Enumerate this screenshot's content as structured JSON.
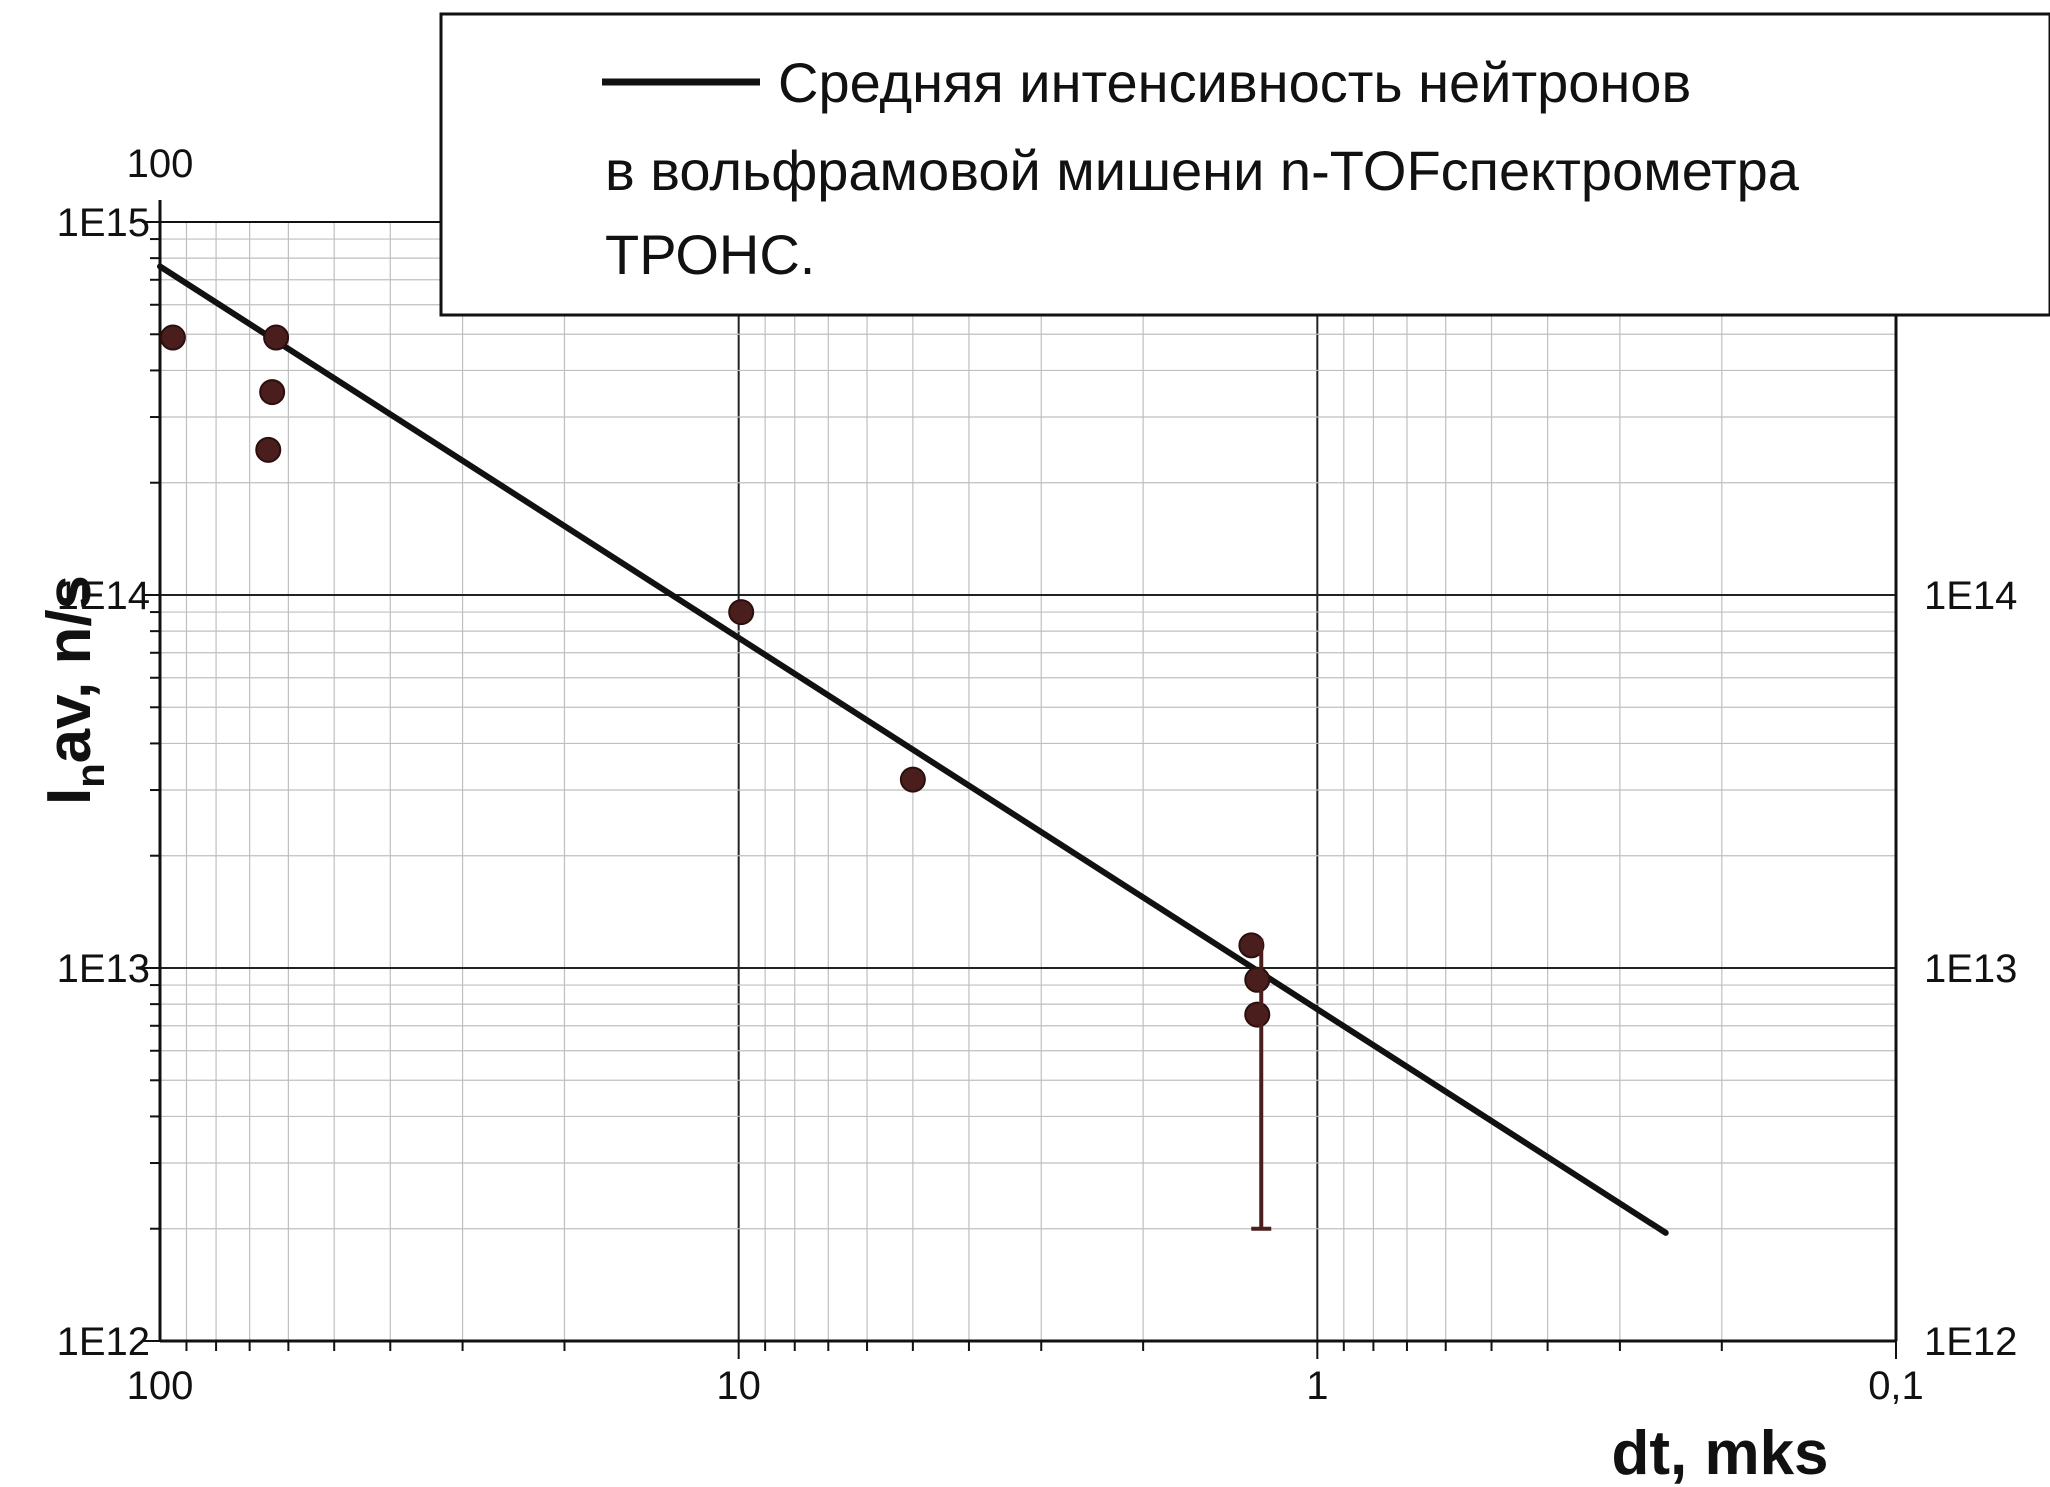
{
  "chart_data": {
    "type": "scatter",
    "title": "",
    "xlabel": "dt, mks",
    "ylabel_main": "I",
    "ylabel_sub": "n",
    "ylabel_rest": "av, n/s",
    "x_scale": "log",
    "x_direction": "reversed",
    "xlim": [
      100,
      0.1
    ],
    "y_scale": "log",
    "ylim": [
      1000000000000.0,
      1000000000000000.0
    ],
    "grid": true,
    "legend_placement": "top-right",
    "legend_lines": [
      "Средняя интенсивность нейтронов",
      "в вольфрамовой мишени n-TOFспектрометра",
      "ТРОНС."
    ],
    "x_tick_labels": [
      {
        "x": 100,
        "label": "100"
      },
      {
        "x": 10,
        "label": "10"
      },
      {
        "x": 1,
        "label": "1"
      },
      {
        "x": 0.1,
        "label": "0,1"
      }
    ],
    "x_top_label": "100",
    "y_tick_labels_left": [
      {
        "y": 1000000000000000.0,
        "label": "1E15"
      },
      {
        "y": 100000000000000.0,
        "label": "1E14"
      },
      {
        "y": 10000000000000.0,
        "label": "1E13"
      },
      {
        "y": 1000000000000.0,
        "label": "1E12"
      }
    ],
    "y_tick_labels_right": [
      {
        "y": 100000000000000.0,
        "label": "1E14"
      },
      {
        "y": 10000000000000.0,
        "label": "1E13"
      },
      {
        "y": 1000000000000.0,
        "label": "1E12"
      }
    ],
    "series": [
      {
        "kind": "line",
        "x": [
          100,
          0.25
        ],
        "y": [
          760000000000000.0,
          1950000000000.0
        ]
      },
      {
        "kind": "points",
        "x": [
          95,
          63,
          64,
          65,
          9.9,
          5,
          1.3,
          1.27,
          1.27
        ],
        "y": [
          490000000000000.0,
          490000000000000.0,
          350000000000000.0,
          245000000000000.0,
          90000000000000.0,
          32000000000000.0,
          11500000000000.0,
          9300000000000.0,
          7500000000000.0
        ]
      },
      {
        "kind": "error_bar",
        "x": 1.25,
        "y_low": 2000000000000.0,
        "y_high": 12000000000000.0
      }
    ],
    "colors": {
      "line": "#111111",
      "marker": "#4a1e1c",
      "grid_major": "#222222",
      "grid_minor": "#bfbfbf"
    }
  }
}
